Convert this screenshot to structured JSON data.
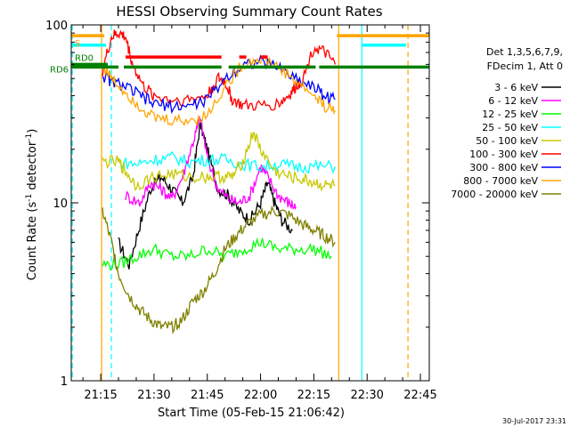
{
  "chart_data": {
    "type": "line",
    "title": "HESSI Observing Summary Count Rates",
    "xlabel": "Start Time (05-Feb-15 21:06:42)",
    "ylabel_main": "Count Rate (s",
    "ylabel_sup": "-1",
    "ylabel_tail": " detector",
    "ylabel_sup2": "-1",
    "ylabel_close": ")",
    "yscale": "log",
    "ylim": [
      1,
      100
    ],
    "xlim": [
      "21:06:42",
      "22:47:30"
    ],
    "x_ticks": [
      "21:15",
      "21:30",
      "21:45",
      "22:00",
      "22:15",
      "22:30",
      "22:45"
    ],
    "y_ticks": [
      "1",
      "10",
      "100"
    ],
    "info_lines": [
      "Det 1,3,5,6,7,9,",
      "FDecim 1, Att 0"
    ],
    "legend_position": "right",
    "series": [
      {
        "name": "3 - 6 keV",
        "color": "#000000",
        "points": [
          [
            "21:20:00",
            6.0
          ],
          [
            "21:23:00",
            4.5
          ],
          [
            "21:26:00",
            7.5
          ],
          [
            "21:29:00",
            12.0
          ],
          [
            "21:32:00",
            14.0
          ],
          [
            "21:35:00",
            12.0
          ],
          [
            "21:38:00",
            10.0
          ],
          [
            "21:41:00",
            14.0
          ],
          [
            "21:43:00",
            28.0
          ],
          [
            "21:45:00",
            20.0
          ],
          [
            "21:48:00",
            12.0
          ],
          [
            "21:51:00",
            11.0
          ],
          [
            "21:54:00",
            9.0
          ],
          [
            "21:57:00",
            8.0
          ],
          [
            "22:00:00",
            10.0
          ],
          [
            "22:02:00",
            13.0
          ],
          [
            "22:04:00",
            10.0
          ],
          [
            "22:06:00",
            8.0
          ],
          [
            "22:09:00",
            7.0
          ]
        ]
      },
      {
        "name": "6 - 12 keV",
        "color": "#ff00ff",
        "points": [
          [
            "21:22:00",
            11.0
          ],
          [
            "21:26:00",
            10.0
          ],
          [
            "21:29:00",
            13.0
          ],
          [
            "21:32:00",
            12.0
          ],
          [
            "21:35:00",
            10.5
          ],
          [
            "21:38:00",
            14.0
          ],
          [
            "21:41:00",
            22.0
          ],
          [
            "21:43:00",
            30.0
          ],
          [
            "21:45:00",
            18.0
          ],
          [
            "21:48:00",
            12.0
          ],
          [
            "21:51:00",
            10.5
          ],
          [
            "21:54:00",
            10.0
          ],
          [
            "21:57:00",
            11.0
          ],
          [
            "22:00:00",
            16.0
          ],
          [
            "22:02:00",
            14.0
          ],
          [
            "22:05:00",
            11.0
          ],
          [
            "22:08:00",
            10.0
          ],
          [
            "22:10:00",
            9.5
          ]
        ]
      },
      {
        "name": "12 - 25 keV",
        "color": "#00ff00",
        "points": [
          [
            "21:15:30",
            4.5
          ],
          [
            "21:20:00",
            4.5
          ],
          [
            "21:25:00",
            5.0
          ],
          [
            "21:30:00",
            5.5
          ],
          [
            "21:35:00",
            5.0
          ],
          [
            "21:40:00",
            5.0
          ],
          [
            "21:45:00",
            5.5
          ],
          [
            "21:50:00",
            5.0
          ],
          [
            "21:55:00",
            5.5
          ],
          [
            "22:00:00",
            6.0
          ],
          [
            "22:05:00",
            5.5
          ],
          [
            "22:10:00",
            5.5
          ],
          [
            "22:15:00",
            5.5
          ],
          [
            "22:20:00",
            5.0
          ]
        ]
      },
      {
        "name": "25 - 50 keV",
        "color": "#00ffff",
        "points": [
          [
            "21:20:00",
            17.0
          ],
          [
            "21:25:00",
            16.5
          ],
          [
            "21:30:00",
            17.5
          ],
          [
            "21:35:00",
            18.0
          ],
          [
            "21:40:00",
            17.0
          ],
          [
            "21:45:00",
            17.5
          ],
          [
            "21:50:00",
            17.5
          ],
          [
            "21:55:00",
            16.5
          ],
          [
            "22:00:00",
            16.0
          ],
          [
            "22:05:00",
            16.5
          ],
          [
            "22:10:00",
            16.0
          ],
          [
            "22:15:00",
            16.0
          ],
          [
            "22:21:00",
            16.0
          ]
        ]
      },
      {
        "name": "50 - 100 keV",
        "color": "#c8c800",
        "points": [
          [
            "21:15:30",
            17.0
          ],
          [
            "21:20:00",
            17.0
          ],
          [
            "21:22:00",
            15.0
          ],
          [
            "21:25:00",
            12.5
          ],
          [
            "21:30:00",
            14.0
          ],
          [
            "21:35:00",
            14.5
          ],
          [
            "21:40:00",
            14.0
          ],
          [
            "21:45:00",
            14.0
          ],
          [
            "21:49:00",
            14.0
          ],
          [
            "21:52:00",
            14.0
          ],
          [
            "21:55:00",
            17.0
          ],
          [
            "21:58:00",
            25.0
          ],
          [
            "22:00:00",
            20.0
          ],
          [
            "22:04:00",
            15.0
          ],
          [
            "22:08:00",
            14.0
          ],
          [
            "22:12:00",
            13.5
          ],
          [
            "22:15:00",
            13.0
          ],
          [
            "22:18:00",
            12.5
          ],
          [
            "22:21:00",
            12.5
          ]
        ]
      },
      {
        "name": "100 - 300 keV",
        "color": "#ff0000",
        "points": [
          [
            "21:15:30",
            55.0
          ],
          [
            "21:18:00",
            85.0
          ],
          [
            "21:20:00",
            90.0
          ],
          [
            "21:22:00",
            85.0
          ],
          [
            "21:24:00",
            60.0
          ],
          [
            "21:27:00",
            45.0
          ],
          [
            "21:30:00",
            40.0
          ],
          [
            "21:35:00",
            38.0
          ],
          [
            "21:40:00",
            38.0
          ],
          [
            "21:45:00",
            40.0
          ],
          [
            "21:48:00",
            50.0
          ],
          [
            "21:50:00",
            48.0
          ],
          [
            "21:52:00",
            38.0
          ],
          [
            "21:55:00",
            35.0
          ],
          [
            "22:00:00",
            35.0
          ],
          [
            "22:05:00",
            36.0
          ],
          [
            "22:08:00",
            40.0
          ],
          [
            "22:10:00",
            45.0
          ],
          [
            "22:12:00",
            50.0
          ],
          [
            "22:15:00",
            75.0
          ],
          [
            "22:18:00",
            70.0
          ],
          [
            "22:21:00",
            60.0
          ]
        ]
      },
      {
        "name": "300 - 800 keV",
        "color": "#0000ff",
        "points": [
          [
            "21:15:30",
            52.0
          ],
          [
            "21:18:00",
            48.0
          ],
          [
            "21:22:00",
            45.0
          ],
          [
            "21:26:00",
            40.0
          ],
          [
            "21:30:00",
            36.0
          ],
          [
            "21:35:00",
            35.0
          ],
          [
            "21:40:00",
            35.0
          ],
          [
            "21:45:00",
            38.0
          ],
          [
            "21:50:00",
            50.0
          ],
          [
            "21:55:00",
            60.0
          ],
          [
            "22:00:00",
            62.0
          ],
          [
            "22:05:00",
            58.0
          ],
          [
            "22:10:00",
            50.0
          ],
          [
            "22:15:00",
            45.0
          ],
          [
            "22:18:00",
            40.0
          ],
          [
            "22:21:00",
            38.0
          ]
        ]
      },
      {
        "name": "800 - 7000 keV",
        "color": "#ffa500",
        "points": [
          [
            "21:15:30",
            60.0
          ],
          [
            "21:18:00",
            50.0
          ],
          [
            "21:22:00",
            42.0
          ],
          [
            "21:26:00",
            35.0
          ],
          [
            "21:30:00",
            30.0
          ],
          [
            "21:35:00",
            29.0
          ],
          [
            "21:40:00",
            29.0
          ],
          [
            "21:45:00",
            31.0
          ],
          [
            "21:50:00",
            45.0
          ],
          [
            "21:55:00",
            60.0
          ],
          [
            "22:00:00",
            65.0
          ],
          [
            "22:05:00",
            58.0
          ],
          [
            "22:10:00",
            48.0
          ],
          [
            "22:15:00",
            40.0
          ],
          [
            "22:18:00",
            35.0
          ],
          [
            "22:21:00",
            33.0
          ]
        ]
      },
      {
        "name": "7000 - 20000 keV",
        "color": "#808000",
        "points": [
          [
            "21:15:30",
            9.0
          ],
          [
            "21:18:00",
            6.0
          ],
          [
            "21:20:00",
            4.0
          ],
          [
            "21:23:00",
            3.0
          ],
          [
            "21:26:00",
            2.5
          ],
          [
            "21:29:00",
            2.2
          ],
          [
            "21:32:00",
            2.0
          ],
          [
            "21:35:00",
            2.0
          ],
          [
            "21:38:00",
            2.2
          ],
          [
            "21:41:00",
            2.8
          ],
          [
            "21:44:00",
            3.2
          ],
          [
            "21:47:00",
            4.0
          ],
          [
            "21:50:00",
            5.5
          ],
          [
            "21:53:00",
            6.5
          ],
          [
            "21:56:00",
            7.5
          ],
          [
            "22:00:00",
            8.5
          ],
          [
            "22:04:00",
            9.0
          ],
          [
            "22:08:00",
            8.5
          ],
          [
            "22:12:00",
            7.5
          ],
          [
            "22:15:00",
            7.0
          ],
          [
            "22:18:00",
            6.5
          ],
          [
            "22:21:00",
            6.0
          ]
        ]
      }
    ],
    "flags": [
      {
        "label": "S",
        "color": "#ffa500",
        "value": 87,
        "segments": [
          [
            "21:06:42",
            "21:16:00"
          ],
          [
            "22:21:30",
            "22:47:30"
          ]
        ]
      },
      {
        "label": "RD0",
        "color": "#008000",
        "value": 60,
        "segments": [
          [
            "21:06:42",
            "21:17:00"
          ]
        ]
      },
      {
        "label": "RD6",
        "color": "#008000",
        "value": 58,
        "segments": [
          [
            "21:06:42",
            "21:20:00"
          ],
          [
            "21:21:30",
            "21:49:00"
          ],
          [
            "21:51:00",
            "22:15:30"
          ],
          [
            "22:16:30",
            "22:47:30"
          ]
        ]
      },
      {
        "label": "",
        "color": "#00ffff",
        "value": 77,
        "segments": [
          [
            "21:06:42",
            "21:16:30"
          ],
          [
            "22:28:30",
            "22:41:00"
          ]
        ]
      },
      {
        "label": "",
        "color": "#ff0000",
        "value": 66,
        "segments": [
          [
            "21:22:00",
            "21:49:00"
          ],
          [
            "21:54:00",
            "21:56:00"
          ],
          [
            "22:00:00",
            "22:02:00"
          ]
        ]
      }
    ],
    "vlines": [
      {
        "time": "21:07:00",
        "color": "#00ffff",
        "dashed": true
      },
      {
        "time": "21:15:15",
        "color": "#ffa500",
        "dashed": false
      },
      {
        "time": "21:18:00",
        "color": "#00ffff",
        "dashed": true
      },
      {
        "time": "22:22:00",
        "color": "#ffa500",
        "dashed": false
      },
      {
        "time": "22:28:30",
        "color": "#00ffff",
        "dashed": false
      },
      {
        "time": "22:41:30",
        "color": "#ffa500",
        "dashed": true
      }
    ]
  },
  "footer": {
    "date": "30-Jul-2017 23:31"
  }
}
